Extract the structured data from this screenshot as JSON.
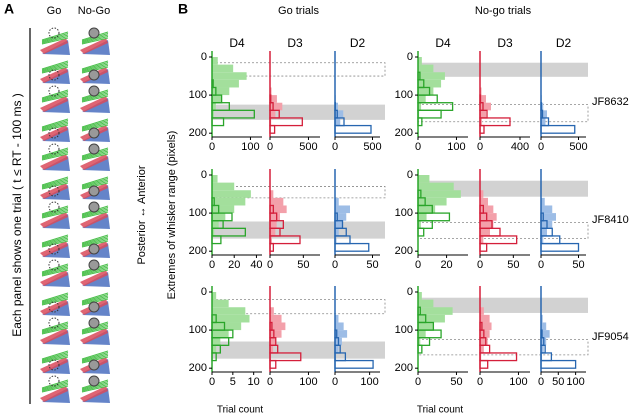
{
  "panel_a": {
    "label": "A",
    "headers": [
      "Go",
      "No-Go"
    ],
    "side_label": "Each panel shows one trial ( t ≤ RT - 100 ms )"
  },
  "panel_b": {
    "label": "B",
    "conditions": [
      "Go trials",
      "No-go trials"
    ],
    "whiskers": [
      {
        "name": "D4",
        "color": "#2aa52a",
        "light": "#a3df9c"
      },
      {
        "name": "D3",
        "color": "#d41f3a",
        "light": "#f3a0aa"
      },
      {
        "name": "D2",
        "color": "#2766b0",
        "light": "#9dbde6"
      }
    ],
    "ylabel": "Extremes of whisker range (pixels)",
    "direction": "Posterior ↔ Anterior",
    "xlabel": "Trial count",
    "ylim": [
      0,
      210
    ],
    "yticks": [
      0,
      100,
      200
    ],
    "bins": [
      0,
      20,
      40,
      60,
      80,
      100,
      120,
      140,
      160,
      180,
      200
    ],
    "animals": [
      {
        "name": "JF8632",
        "conditions": [
          {
            "shaded": [
              125,
              165
            ],
            "dashed": [
              15,
              50
            ],
            "panels": [
              {
                "xlim": [
                  0,
                  130
                ],
                "xticks": [
                  0,
                  100
                ],
                "filled": [
                  15,
                  55,
                  90,
                  70,
                  45,
                  25,
                  10,
                  5,
                  2,
                  0
                ],
                "outline": [
                  0,
                  0,
                  0,
                  3,
                  10,
                  25,
                  45,
                  110,
                  30,
                  0
                ]
              },
              {
                "xlim": [
                  0,
                  650
                ],
                "xticks": [
                  0,
                  500
                ],
                "filled": [
                  0,
                  0,
                  0,
                  0,
                  20,
                  90,
                  160,
                  70,
                  15,
                  0
                ],
                "outline": [
                  0,
                  0,
                  0,
                  0,
                  0,
                  10,
                  40,
                  120,
                  420,
                  60
                ]
              },
              {
                "xlim": [
                  0,
                  600
                ],
                "xticks": [
                  0,
                  500
                ],
                "filled": [
                  0,
                  0,
                  0,
                  0,
                  0,
                  10,
                  40,
                  110,
                  70,
                  10
                ],
                "outline": [
                  0,
                  0,
                  0,
                  0,
                  0,
                  0,
                  5,
                  30,
                  120,
                  480
                ]
              }
            ]
          },
          {
            "shaded": [
              15,
              52
            ],
            "dashed": [
              125,
              170
            ],
            "panels": [
              {
                "xlim": [
                  0,
                  130
                ],
                "xticks": [
                  0,
                  100
                ],
                "filled": [
                  10,
                  40,
                  70,
                  60,
                  40,
                  20,
                  8,
                  3,
                  0,
                  0
                ],
                "outline": [
                  0,
                  0,
                  5,
                  15,
                  30,
                  50,
                  90,
                  60,
                  10,
                  0
                ]
              },
              {
                "xlim": [
                  0,
                  500
                ],
                "xticks": [
                  0,
                  400
                ],
                "filled": [
                  0,
                  0,
                  0,
                  0,
                  15,
                  60,
                  110,
                  60,
                  20,
                  0
                ],
                "outline": [
                  0,
                  0,
                  0,
                  0,
                  0,
                  5,
                  30,
                  70,
                  300,
                  40
                ]
              },
              {
                "xlim": [
                  0,
                  600
                ],
                "xticks": [
                  0,
                  500
                ],
                "filled": [
                  0,
                  0,
                  0,
                  0,
                  0,
                  10,
                  30,
                  80,
                  60,
                  10
                ],
                "outline": [
                  0,
                  0,
                  0,
                  0,
                  0,
                  0,
                  5,
                  20,
                  100,
                  450
                ]
              }
            ]
          }
        ]
      },
      {
        "name": "JF8410",
        "conditions": [
          {
            "shaded": [
              122,
              167
            ],
            "dashed": [
              30,
              60
            ],
            "panels": [
              {
                "xlim": [
                  0,
                  45
                ],
                "xticks": [
                  0,
                  20,
                  40
                ],
                "filled": [
                  5,
                  20,
                  35,
                  30,
                  20,
                  12,
                  6,
                  2,
                  0,
                  0
                ],
                "outline": [
                  0,
                  0,
                  0,
                  2,
                  6,
                  18,
                  10,
                  30,
                  8,
                  0
                ]
              },
              {
                "xlim": [
                  0,
                  75
                ],
                "xticks": [
                  0,
                  50
                ],
                "filled": [
                  0,
                  0,
                  5,
                  20,
                  25,
                  15,
                  10,
                  8,
                  3,
                  0
                ],
                "outline": [
                  0,
                  0,
                  0,
                  0,
                  5,
                  10,
                  20,
                  15,
                  45,
                  5
                ]
              },
              {
                "xlim": [
                  0,
                  60
                ],
                "xticks": [
                  0,
                  50
                ],
                "filled": [
                  0,
                  0,
                  0,
                  5,
                  20,
                  15,
                  10,
                  5,
                  2,
                  0
                ],
                "outline": [
                  0,
                  0,
                  0,
                  0,
                  0,
                  3,
                  10,
                  15,
                  20,
                  45
                ]
              }
            ]
          },
          {
            "shaded": [
              15,
              57
            ],
            "dashed": [
              125,
              167
            ],
            "panels": [
              {
                "xlim": [
                  0,
                  35
                ],
                "xticks": [
                  0,
                  20
                ],
                "filled": [
                  8,
                  25,
                  30,
                  20,
                  12,
                  6,
                  2,
                  0,
                  0,
                  0
                ],
                "outline": [
                  0,
                  0,
                  2,
                  5,
                  10,
                  22,
                  10,
                  4,
                  0,
                  0
                ]
              },
              {
                "xlim": [
                  0,
                  75
                ],
                "xticks": [
                  0,
                  50
                ],
                "filled": [
                  0,
                  0,
                  5,
                  12,
                  20,
                  25,
                  20,
                  15,
                  5,
                  0
                ],
                "outline": [
                  0,
                  0,
                  0,
                  0,
                  5,
                  10,
                  18,
                  30,
                  55,
                  10
                ]
              },
              {
                "xlim": [
                  0,
                  60
                ],
                "xticks": [
                  0,
                  50
                ],
                "filled": [
                  0,
                  0,
                  0,
                  5,
                  15,
                  20,
                  15,
                  8,
                  3,
                  0
                ],
                "outline": [
                  0,
                  0,
                  0,
                  0,
                  0,
                  3,
                  8,
                  15,
                  25,
                  50
                ]
              }
            ]
          }
        ]
      },
      {
        "name": "JF9054",
        "conditions": [
          {
            "shaded": [
              130,
              175
            ],
            "dashed": [
              20,
              57
            ],
            "panels": [
              {
                "xlim": [
                  0,
                  12
                ],
                "xticks": [
                  0,
                  5,
                  10
                ],
                "filled": [
                  1,
                  4,
                  8,
                  9,
                  7,
                  4,
                  2,
                  1,
                  0,
                  0
                ],
                "outline": [
                  0,
                  0,
                  0,
                  1,
                  3,
                  5,
                  4,
                  2,
                  1,
                  0
                ]
              },
              {
                "xlim": [
                  0,
                  130
                ],
                "xticks": [
                  0,
                  100
                ],
                "filled": [
                  0,
                  0,
                  10,
                  30,
                  40,
                  30,
                  15,
                  8,
                  2,
                  0
                ],
                "outline": [
                  0,
                  0,
                  0,
                  0,
                  5,
                  10,
                  15,
                  20,
                  80,
                  15
                ]
              },
              {
                "xlim": [
                  0,
                  130
                ],
                "xticks": [
                  0,
                  100
                ],
                "filled": [
                  0,
                  0,
                  0,
                  10,
                  25,
                  35,
                  20,
                  10,
                  3,
                  0
                ],
                "outline": [
                  0,
                  0,
                  0,
                  0,
                  0,
                  5,
                  10,
                  15,
                  30,
                  110
                ]
              }
            ]
          },
          {
            "shaded": [
              15,
              55
            ],
            "dashed": [
              125,
              165
            ],
            "panels": [
              {
                "xlim": [
                  0,
                  65
                ],
                "xticks": [
                  0,
                  50
                ],
                "filled": [
                  5,
                  20,
                  45,
                  35,
                  20,
                  10,
                  3,
                  1,
                  0,
                  0
                ],
                "outline": [
                  0,
                  0,
                  3,
                  10,
                  20,
                  30,
                  15,
                  5,
                  0,
                  0
                ]
              },
              {
                "xlim": [
                  0,
                  130
                ],
                "xticks": [
                  0,
                  100
                ],
                "filled": [
                  0,
                  0,
                  10,
                  25,
                  30,
                  25,
                  20,
                  10,
                  3,
                  0
                ],
                "outline": [
                  0,
                  0,
                  0,
                  0,
                  5,
                  10,
                  15,
                  25,
                  95,
                  20
                ]
              },
              {
                "xlim": [
                  0,
                  130
                ],
                "xticks": [
                  0,
                  50,
                  100
                ],
                "filled": [
                  0,
                  0,
                  0,
                  5,
                  15,
                  25,
                  15,
                  8,
                  3,
                  0
                ],
                "outline": [
                  0,
                  0,
                  0,
                  0,
                  0,
                  3,
                  8,
                  12,
                  30,
                  100
                ]
              }
            ]
          }
        ]
      }
    ]
  }
}
